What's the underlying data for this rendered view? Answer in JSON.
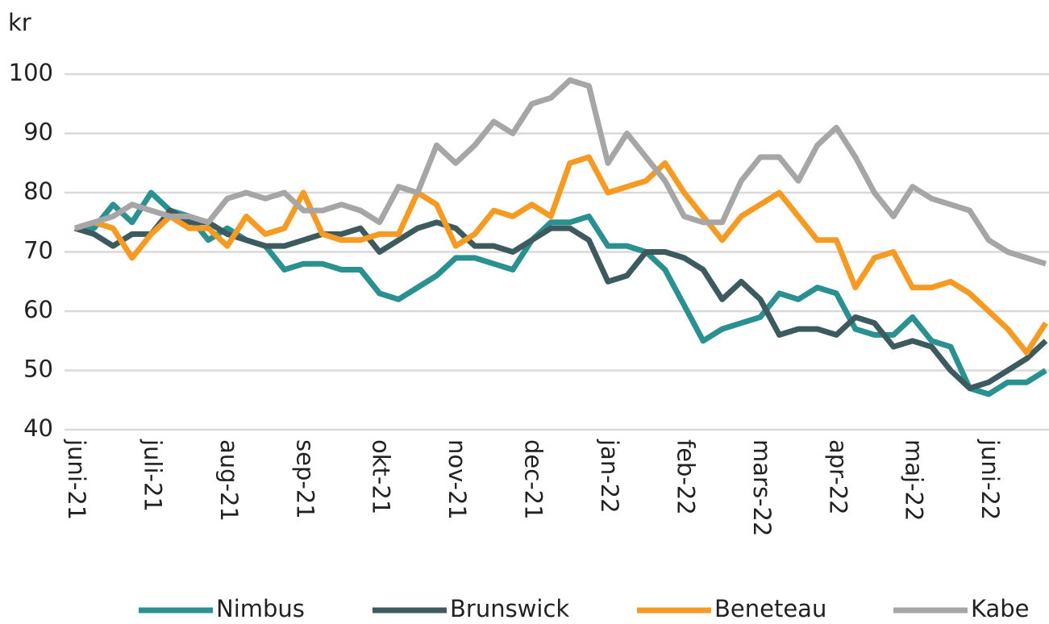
{
  "chart_data": {
    "type": "line",
    "y_label": "kr",
    "categories": [
      "juni-21",
      null,
      null,
      null,
      "juli-21",
      null,
      null,
      null,
      "aug-21",
      null,
      null,
      null,
      "sep-21",
      null,
      null,
      null,
      "okt-21",
      null,
      null,
      null,
      "nov-21",
      null,
      null,
      null,
      "dec-21",
      null,
      null,
      null,
      "jan-22",
      null,
      null,
      null,
      "feb-22",
      null,
      null,
      null,
      "mars-22",
      null,
      null,
      null,
      "apr-22",
      null,
      null,
      null,
      "maj-22",
      null,
      null,
      null,
      "juni-22",
      null,
      null,
      null
    ],
    "series": [
      {
        "name": "Nimbus",
        "color": "#2a9090",
        "values": [
          74,
          74,
          78,
          75,
          80,
          77,
          76,
          72,
          74,
          72,
          71,
          67,
          68,
          68,
          67,
          67,
          63,
          62,
          64,
          66,
          69,
          69,
          68,
          67,
          72,
          75,
          75,
          76,
          71,
          71,
          70,
          67,
          61,
          55,
          57,
          58,
          59,
          63,
          62,
          64,
          63,
          57,
          56,
          56,
          59,
          55,
          54,
          47,
          46,
          48,
          48,
          50
        ]
      },
      {
        "name": "Brunswick",
        "color": "#3d5a5e",
        "values": [
          74,
          73,
          71,
          73,
          73,
          77,
          75,
          75,
          73,
          72,
          71,
          71,
          72,
          73,
          73,
          74,
          70,
          72,
          74,
          75,
          74,
          71,
          71,
          70,
          72,
          74,
          74,
          72,
          65,
          66,
          70,
          70,
          69,
          67,
          62,
          65,
          62,
          56,
          57,
          57,
          56,
          59,
          58,
          54,
          55,
          54,
          50,
          47,
          48,
          50,
          52,
          55
        ]
      },
      {
        "name": "Beneteau",
        "color": "#f59a23",
        "values": [
          74,
          75,
          74,
          69,
          73,
          76,
          74,
          74,
          71,
          76,
          73,
          74,
          80,
          73,
          72,
          72,
          73,
          73,
          80,
          78,
          71,
          73,
          77,
          76,
          78,
          76,
          85,
          86,
          80,
          81,
          82,
          85,
          80,
          76,
          72,
          76,
          78,
          80,
          76,
          72,
          72,
          64,
          69,
          70,
          64,
          64,
          65,
          63,
          60,
          57,
          53,
          58
        ]
      },
      {
        "name": "Kabe",
        "color": "#a6a6a6",
        "values": [
          74,
          75,
          76,
          78,
          77,
          76,
          76,
          75,
          79,
          80,
          79,
          80,
          77,
          77,
          78,
          77,
          75,
          81,
          80,
          88,
          85,
          88,
          92,
          90,
          95,
          96,
          99,
          98,
          85,
          90,
          86,
          82,
          76,
          75,
          75,
          82,
          86,
          86,
          82,
          88,
          91,
          86,
          80,
          76,
          81,
          79,
          78,
          77,
          72,
          70,
          69,
          68
        ]
      }
    ],
    "ylim": [
      40,
      100
    ],
    "yticks": [
      40,
      50,
      60,
      70,
      80,
      90,
      100
    ],
    "grid": true,
    "legend": "bottom"
  }
}
